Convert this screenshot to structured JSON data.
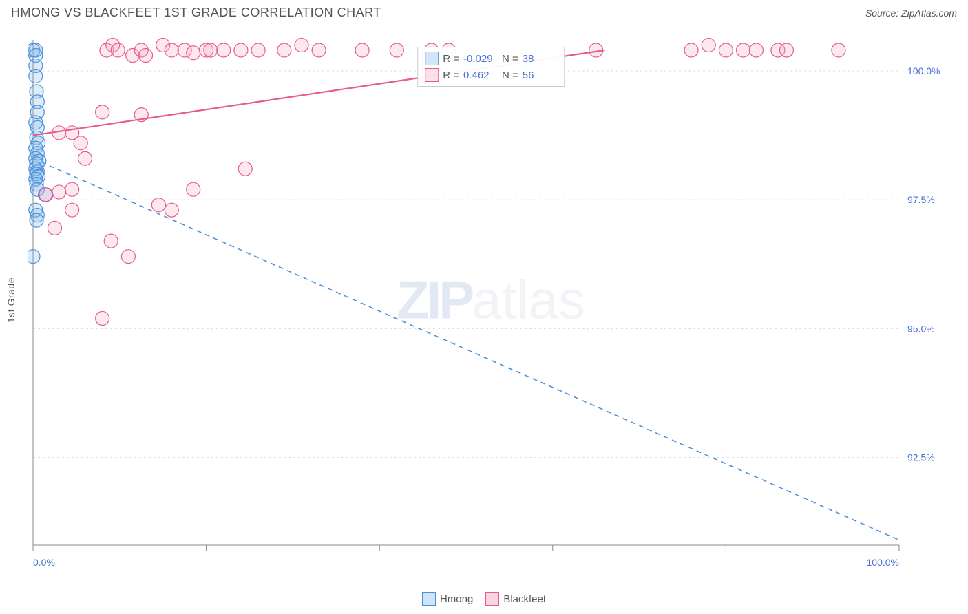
{
  "title": "HMONG VS BLACKFEET 1ST GRADE CORRELATION CHART",
  "source": "Source: ZipAtlas.com",
  "ylabel": "1st Grade",
  "watermark": {
    "part1": "ZIP",
    "part2": "atlas"
  },
  "chart": {
    "type": "scatter",
    "background_color": "#ffffff",
    "grid_color": "#dddddd",
    "axis_color": "#888888",
    "tick_color": "#888888",
    "xlim": [
      0,
      100
    ],
    "ylim": [
      90.8,
      100.6
    ],
    "xticks": [
      0,
      20,
      40,
      60,
      80,
      100
    ],
    "xtick_labels": [
      "0.0%",
      "",
      "",
      "",
      "",
      "100.0%"
    ],
    "yticks": [
      92.5,
      95.0,
      97.5,
      100.0
    ],
    "ytick_labels": [
      "92.5%",
      "95.0%",
      "97.5%",
      "100.0%"
    ],
    "grid_dash": "3,4",
    "label_color": "#4a6fd8",
    "label_fontsize": 14,
    "marker_radius": 10,
    "marker_stroke_width": 1.2,
    "marker_fill_opacity": 0.25,
    "series": [
      {
        "name": "Hmong",
        "color": "#7cb5ec",
        "stroke": "#4a90d9",
        "r_value": "-0.029",
        "n_value": "38",
        "trend": {
          "x1": 0,
          "y1": 98.3,
          "x2": 100,
          "y2": 90.9,
          "dash": "7,6",
          "width": 1.6
        },
        "points": [
          [
            0,
            100.4
          ],
          [
            0.3,
            100.4
          ],
          [
            0.3,
            100.3
          ],
          [
            0.3,
            100.1
          ],
          [
            0.3,
            99.9
          ],
          [
            0.4,
            99.6
          ],
          [
            0.5,
            99.4
          ],
          [
            0.5,
            99.2
          ],
          [
            0.3,
            99.0
          ],
          [
            0.5,
            98.9
          ],
          [
            0.4,
            98.7
          ],
          [
            0.6,
            98.6
          ],
          [
            0.3,
            98.5
          ],
          [
            0.5,
            98.4
          ],
          [
            0.3,
            98.3
          ],
          [
            0.7,
            98.25
          ],
          [
            0.4,
            98.2
          ],
          [
            0.3,
            98.1
          ],
          [
            0.5,
            98.05
          ],
          [
            0.4,
            98.0
          ],
          [
            0.6,
            97.95
          ],
          [
            0.3,
            97.9
          ],
          [
            0.4,
            97.8
          ],
          [
            0.5,
            97.7
          ],
          [
            1.4,
            97.6
          ],
          [
            0.3,
            97.3
          ],
          [
            0.5,
            97.2
          ],
          [
            0.4,
            97.1
          ],
          [
            0.0,
            96.4
          ]
        ]
      },
      {
        "name": "Blackfeet",
        "color": "#f4a6c0",
        "stroke": "#e85a8f",
        "r_value": "0.462",
        "n_value": "56",
        "trend": {
          "x1": 0,
          "y1": 98.75,
          "x2": 66,
          "y2": 100.4,
          "dash": "none",
          "width": 2.2
        },
        "points": [
          [
            8.5,
            100.4
          ],
          [
            9.2,
            100.5
          ],
          [
            9.8,
            100.4
          ],
          [
            11.5,
            100.3
          ],
          [
            12.5,
            100.4
          ],
          [
            13,
            100.3
          ],
          [
            15,
            100.5
          ],
          [
            16,
            100.4
          ],
          [
            17.5,
            100.4
          ],
          [
            18.5,
            100.35
          ],
          [
            20,
            100.4
          ],
          [
            20.5,
            100.4
          ],
          [
            22,
            100.4
          ],
          [
            24,
            100.4
          ],
          [
            26,
            100.4
          ],
          [
            29,
            100.4
          ],
          [
            31,
            100.5
          ],
          [
            33,
            100.4
          ],
          [
            38,
            100.4
          ],
          [
            42,
            100.4
          ],
          [
            46,
            100.4
          ],
          [
            48,
            100.4
          ],
          [
            65,
            100.4
          ],
          [
            76,
            100.4
          ],
          [
            78,
            100.5
          ],
          [
            80,
            100.4
          ],
          [
            82,
            100.4
          ],
          [
            83.5,
            100.4
          ],
          [
            86,
            100.4
          ],
          [
            87,
            100.4
          ],
          [
            93,
            100.4
          ],
          [
            8,
            99.2
          ],
          [
            12.5,
            99.15
          ],
          [
            3,
            98.8
          ],
          [
            4.5,
            98.8
          ],
          [
            5.5,
            98.6
          ],
          [
            6,
            98.3
          ],
          [
            24.5,
            98.1
          ],
          [
            18.5,
            97.7
          ],
          [
            1.5,
            97.6
          ],
          [
            3,
            97.65
          ],
          [
            4.5,
            97.7
          ],
          [
            14.5,
            97.4
          ],
          [
            16,
            97.3
          ],
          [
            4.5,
            97.3
          ],
          [
            2.5,
            96.95
          ],
          [
            9,
            96.7
          ],
          [
            11,
            96.4
          ],
          [
            8,
            95.2
          ]
        ]
      }
    ]
  },
  "legend_bottom": [
    {
      "label": "Hmong",
      "fill": "#cfe4f7",
      "stroke": "#4a90d9"
    },
    {
      "label": "Blackfeet",
      "fill": "#f9d5e2",
      "stroke": "#e85a8f"
    }
  ]
}
